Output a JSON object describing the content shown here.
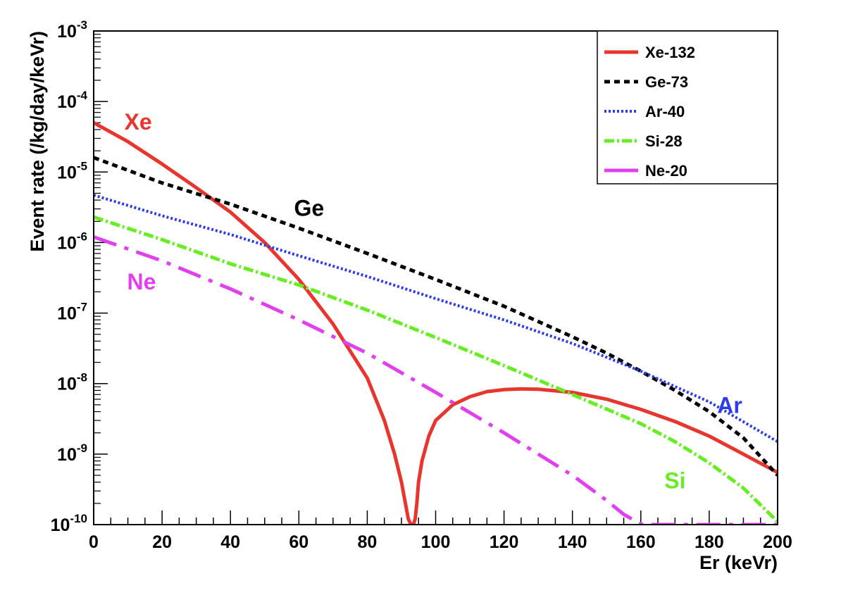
{
  "chart_data": {
    "type": "line",
    "xlabel": "Er (keVr)",
    "ylabel": "Event rate (/kg/day/keVr)",
    "xlim": [
      0,
      200
    ],
    "ylim": [
      1e-10,
      0.001
    ],
    "yscale": "log",
    "x_ticks": [
      "0",
      "20",
      "40",
      "60",
      "80",
      "100",
      "120",
      "140",
      "160",
      "180",
      "200"
    ],
    "y_ticks": [
      {
        "base": "10",
        "exp": "-10"
      },
      {
        "base": "10",
        "exp": "-9"
      },
      {
        "base": "10",
        "exp": "-8"
      },
      {
        "base": "10",
        "exp": "-7"
      },
      {
        "base": "10",
        "exp": "-6"
      },
      {
        "base": "10",
        "exp": "-5"
      },
      {
        "base": "10",
        "exp": "-4"
      },
      {
        "base": "10",
        "exp": "-3"
      }
    ],
    "legend_position": "top-right",
    "grid": false,
    "series": [
      {
        "name": "Xe-132",
        "color": "#e8362e",
        "style": "solid",
        "annotation": "Xe",
        "x": [
          0,
          10,
          20,
          30,
          40,
          50,
          60,
          70,
          80,
          85,
          88,
          90,
          91,
          92,
          92.8,
          93.5,
          94,
          94.5,
          95,
          96,
          98,
          100,
          105,
          110,
          115,
          120,
          125,
          130,
          140,
          150,
          160,
          170,
          180,
          190,
          200
        ],
        "y": [
          5e-05,
          2.7e-05,
          1.3e-05,
          6e-06,
          2.7e-06,
          1e-06,
          3e-07,
          7e-08,
          1.2e-08,
          3e-09,
          1e-09,
          4e-10,
          2.2e-10,
          1.2e-10,
          1e-10,
          1e-10,
          1.2e-10,
          2e-10,
          4e-10,
          8e-10,
          1.8e-09,
          3e-09,
          5e-09,
          6.5e-09,
          7.7e-09,
          8.2e-09,
          8.4e-09,
          8.3e-09,
          7.5e-09,
          6e-09,
          4.3e-09,
          2.9e-09,
          1.8e-09,
          1e-09,
          5.5e-10
        ]
      },
      {
        "name": "Ge-73",
        "color": "#000000",
        "style": "dashed",
        "annotation": "Ge",
        "x": [
          0,
          20,
          40,
          60,
          80,
          100,
          120,
          140,
          150,
          160,
          170,
          180,
          190,
          200
        ],
        "y": [
          1.6e-05,
          7e-06,
          3.5e-06,
          1.6e-06,
          7e-07,
          3e-07,
          1.25e-07,
          4.6e-08,
          2.7e-08,
          1.5e-08,
          8e-09,
          4e-09,
          1.7e-09,
          5e-10
        ]
      },
      {
        "name": "Ar-40",
        "color": "#2c3ce6",
        "style": "dotted",
        "annotation": "Ar",
        "x": [
          0,
          20,
          40,
          60,
          80,
          100,
          120,
          140,
          160,
          180,
          200
        ],
        "y": [
          4.7e-06,
          2.4e-06,
          1.3e-06,
          6.5e-07,
          3.3e-07,
          1.6e-07,
          8e-08,
          3.7e-08,
          1.5e-08,
          5.5e-09,
          1.5e-09
        ]
      },
      {
        "name": "Si-28",
        "color": "#66ee22",
        "style": "dashdot",
        "annotation": "Si",
        "x": [
          0,
          20,
          40,
          60,
          80,
          100,
          120,
          140,
          160,
          170,
          180,
          190,
          200
        ],
        "y": [
          2.3e-06,
          1.1e-06,
          5e-07,
          2.5e-07,
          1.1e-07,
          4.5e-08,
          1.8e-08,
          7e-09,
          2.7e-09,
          1.5e-09,
          7.5e-10,
          3.3e-10,
          1.1e-10
        ]
      },
      {
        "name": "Ne-20",
        "color": "#e040ee",
        "style": "longdashdot",
        "annotation": "Ne",
        "x": [
          0,
          20,
          40,
          60,
          80,
          100,
          120,
          140,
          150,
          155,
          160,
          161,
          170,
          180,
          190,
          200
        ],
        "y": [
          1.2e-06,
          5.5e-07,
          2.2e-07,
          8e-08,
          2.7e-08,
          7.5e-09,
          2e-09,
          5e-10,
          2.2e-10,
          1.4e-10,
          1.02e-10,
          1e-10,
          1e-10,
          1e-10,
          1e-10,
          1e-10
        ]
      }
    ]
  }
}
